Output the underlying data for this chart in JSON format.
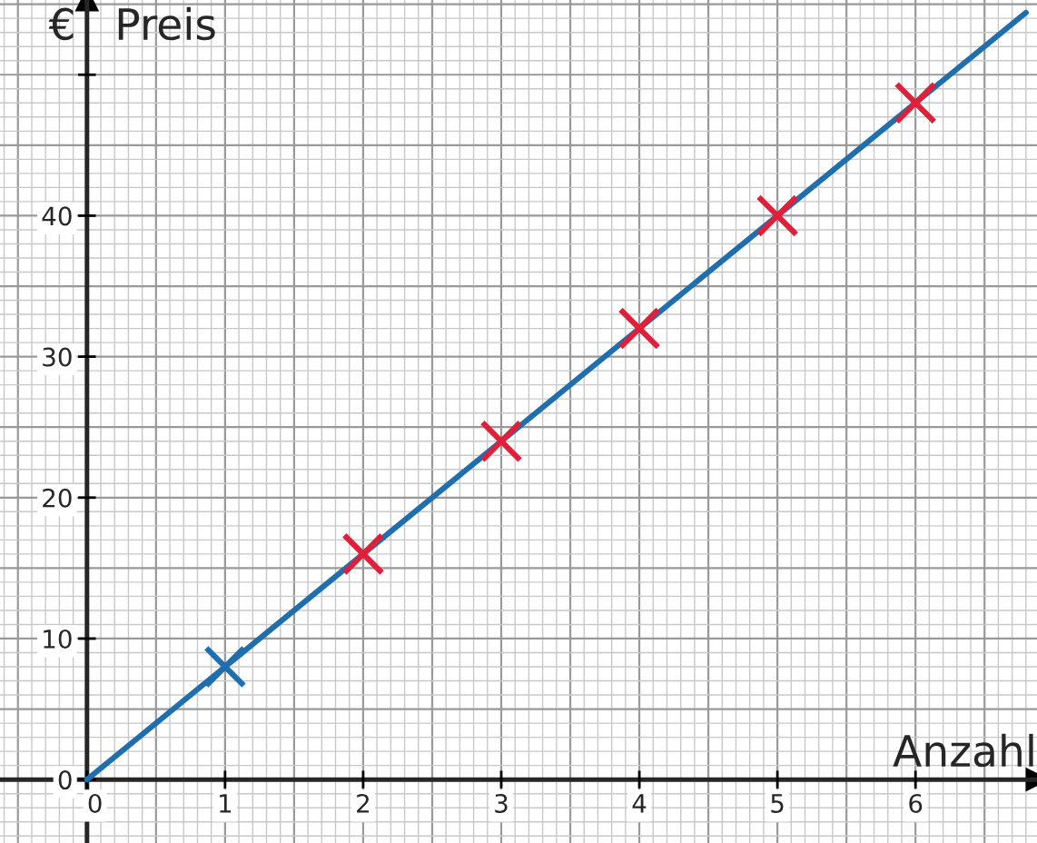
{
  "chart_data": {
    "type": "scatter",
    "xlabel": "Anzahl",
    "ylabel": "€",
    "annotations": [
      "Preis"
    ],
    "xlim": [
      -0.63,
      6.88
    ],
    "ylim": [
      -4.5,
      55.3
    ],
    "xticks": [
      0,
      1,
      2,
      3,
      4,
      5,
      6
    ],
    "yticks": [
      0,
      10,
      20,
      30,
      40,
      {
        "value": 50,
        "label": null
      }
    ],
    "grid": true,
    "series": [
      {
        "type": "line",
        "color": "#1f6fae",
        "x": [
          0,
          6.8
        ],
        "values": [
          0,
          54.4
        ],
        "line_style": "solid"
      },
      {
        "marker": "cross",
        "x": [
          1,
          2,
          3,
          4,
          5,
          6
        ],
        "values": [
          8,
          16,
          24,
          32,
          40,
          48
        ],
        "colors": [
          "#1f6fae",
          "#e0203a",
          "#e0203a",
          "#e0203a",
          "#e0203a",
          "#e0203a"
        ]
      }
    ]
  }
}
